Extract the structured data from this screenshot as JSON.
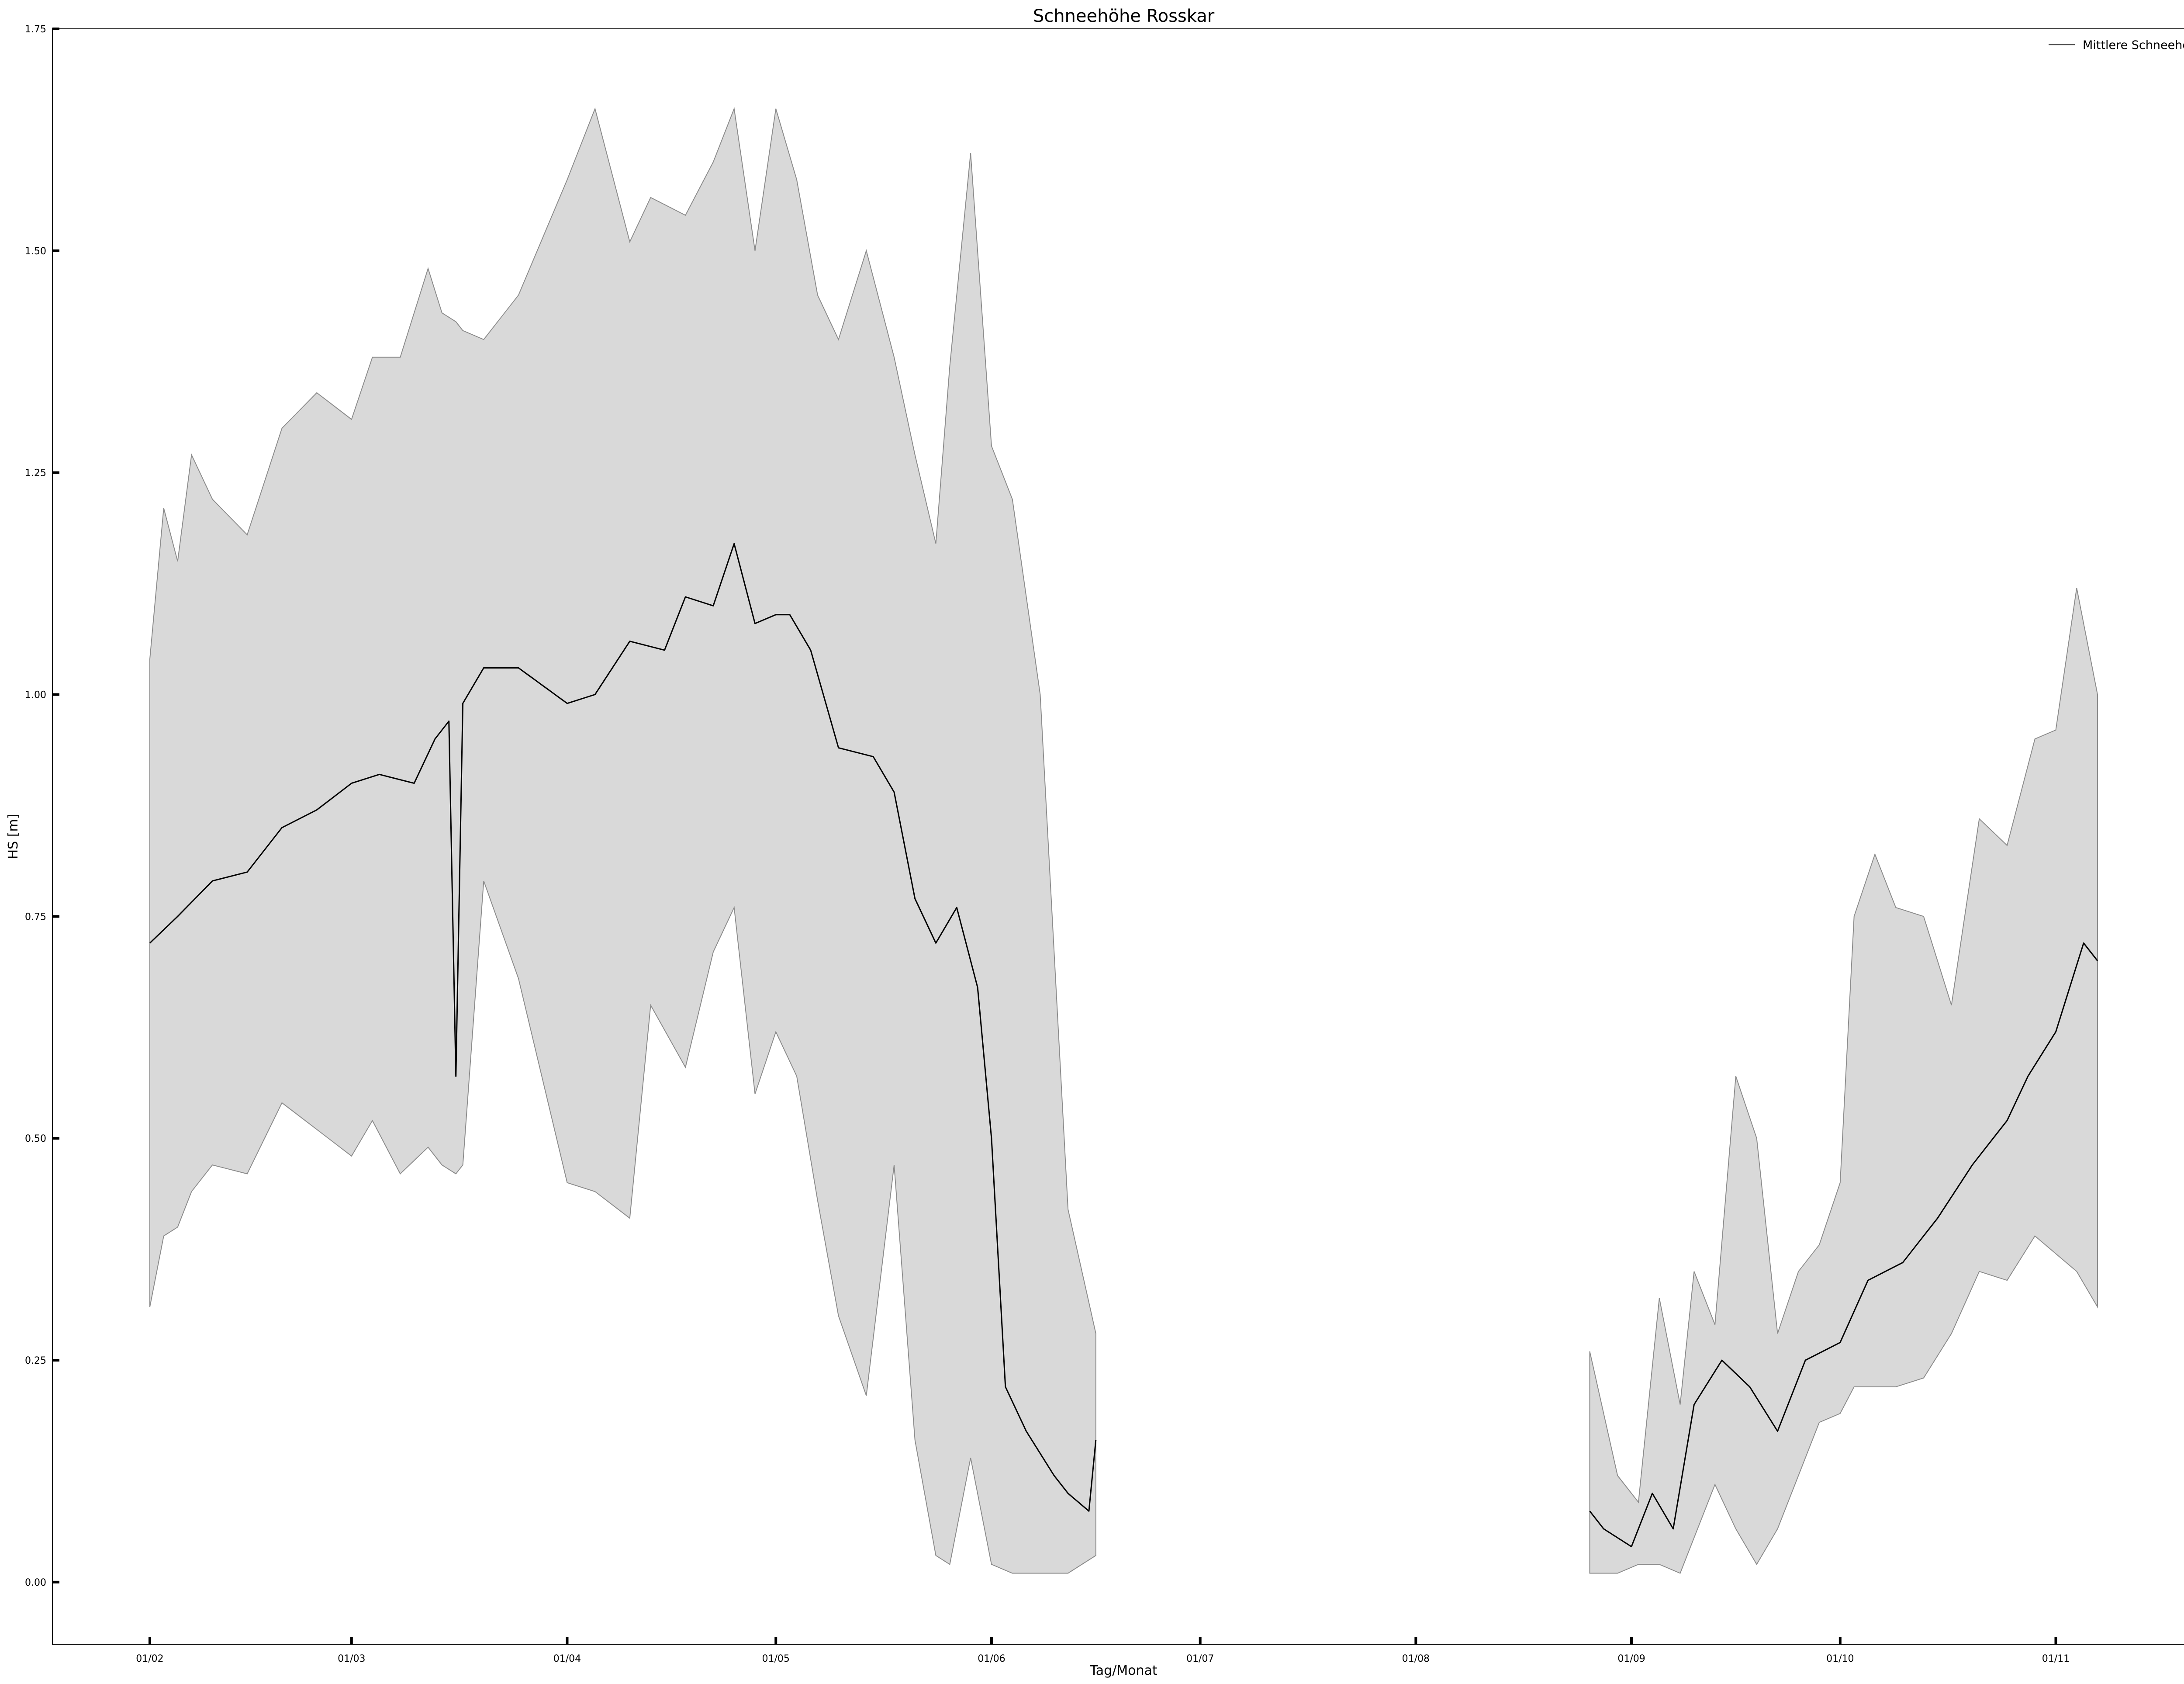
{
  "chart_data": {
    "type": "area",
    "title": "Schneehöhe  Rosskar",
    "xlabel": "Tag/Monat",
    "ylabel": "HS [m]",
    "ylim": [
      -0.07,
      1.75
    ],
    "xlim": [
      "2000-01-18",
      "2000-11-21"
    ],
    "y_ticks": [
      0.0,
      0.25,
      0.5,
      0.75,
      1.0,
      1.25,
      1.5,
      1.75
    ],
    "y_tick_labels": [
      "0.00",
      "0.25",
      "0.50",
      "0.75",
      "1.00",
      "1.25",
      "1.50",
      "1.75"
    ],
    "x_ticks": [
      "2000-02-01",
      "2000-03-01",
      "2000-04-01",
      "2000-05-01",
      "2000-06-01",
      "2000-07-01",
      "2000-08-01",
      "2000-09-01",
      "2000-10-01",
      "2000-11-01"
    ],
    "x_tick_labels": [
      "01/02",
      "01/03",
      "01/04",
      "01/05",
      "01/06",
      "01/07",
      "01/08",
      "01/09",
      "01/10",
      "01/11"
    ],
    "grid": false,
    "legend_position": "top-right",
    "colors": {
      "band_fill": "#d9d9d9",
      "band_edge": "#8c8c8c",
      "mean_line": "#000000"
    },
    "series": [
      {
        "name": "Mittlere Schneehöhe",
        "style": "line",
        "segments": [
          {
            "x": [
              "2000-02-01",
              "2000-02-05",
              "2000-02-10",
              "2000-02-15",
              "2000-02-20",
              "2000-02-25",
              "2000-03-01",
              "2000-03-05",
              "2000-03-10",
              "2000-03-13",
              "2000-03-15",
              "2000-03-16",
              "2000-03-17",
              "2000-03-20",
              "2000-03-25",
              "2000-04-01",
              "2000-04-05",
              "2000-04-10",
              "2000-04-15",
              "2000-04-18",
              "2000-04-22",
              "2000-04-25",
              "2000-04-28",
              "2000-05-01",
              "2000-05-03",
              "2000-05-06",
              "2000-05-10",
              "2000-05-15",
              "2000-05-18",
              "2000-05-21",
              "2000-05-24",
              "2000-05-27",
              "2000-05-30",
              "2000-06-01",
              "2000-06-03",
              "2000-06-06",
              "2000-06-10",
              "2000-06-12",
              "2000-06-15",
              "2000-06-16"
            ],
            "y": [
              0.72,
              0.75,
              0.79,
              0.8,
              0.85,
              0.87,
              0.9,
              0.91,
              0.9,
              0.95,
              0.97,
              0.57,
              0.99,
              1.03,
              1.03,
              0.99,
              1.0,
              1.06,
              1.05,
              1.11,
              1.1,
              1.17,
              1.08,
              1.09,
              1.09,
              1.05,
              0.94,
              0.93,
              0.89,
              0.77,
              0.72,
              0.76,
              0.67,
              0.5,
              0.22,
              0.17,
              0.12,
              0.1,
              0.08,
              0.16
            ]
          },
          {
            "x": [
              "2000-08-26",
              "2000-08-28",
              "2000-09-01",
              "2000-09-04",
              "2000-09-07",
              "2000-09-10",
              "2000-09-14",
              "2000-09-18",
              "2000-09-22",
              "2000-09-26",
              "2000-10-01",
              "2000-10-05",
              "2000-10-10",
              "2000-10-15",
              "2000-10-20",
              "2000-10-25",
              "2000-10-28",
              "2000-11-01",
              "2000-11-05",
              "2000-11-07"
            ],
            "y": [
              0.08,
              0.06,
              0.04,
              0.1,
              0.06,
              0.2,
              0.25,
              0.22,
              0.17,
              0.25,
              0.27,
              0.34,
              0.36,
              0.41,
              0.47,
              0.52,
              0.57,
              0.62,
              0.72,
              0.7
            ]
          }
        ]
      },
      {
        "role": "band",
        "style": "fill",
        "segments": [
          {
            "x": [
              "2000-02-01",
              "2000-02-03",
              "2000-02-05",
              "2000-02-07",
              "2000-02-10",
              "2000-02-15",
              "2000-02-20",
              "2000-02-25",
              "2000-03-01",
              "2000-03-04",
              "2000-03-08",
              "2000-03-12",
              "2000-03-14",
              "2000-03-16",
              "2000-03-17",
              "2000-03-20",
              "2000-03-25",
              "2000-04-01",
              "2000-04-05",
              "2000-04-10",
              "2000-04-13",
              "2000-04-18",
              "2000-04-22",
              "2000-04-25",
              "2000-04-28",
              "2000-05-01",
              "2000-05-04",
              "2000-05-07",
              "2000-05-10",
              "2000-05-14",
              "2000-05-18",
              "2000-05-21",
              "2000-05-24",
              "2000-05-26",
              "2000-05-29",
              "2000-06-01",
              "2000-06-04",
              "2000-06-08",
              "2000-06-12",
              "2000-06-16"
            ],
            "low": [
              0.31,
              0.39,
              0.4,
              0.44,
              0.47,
              0.46,
              0.54,
              0.51,
              0.48,
              0.52,
              0.46,
              0.49,
              0.47,
              0.46,
              0.47,
              0.79,
              0.68,
              0.45,
              0.44,
              0.41,
              0.65,
              0.58,
              0.71,
              0.76,
              0.55,
              0.62,
              0.57,
              0.43,
              0.3,
              0.21,
              0.47,
              0.16,
              0.03,
              0.02,
              0.14,
              0.02,
              0.01,
              0.01,
              0.01,
              0.03
            ],
            "high": [
              1.04,
              1.21,
              1.15,
              1.27,
              1.22,
              1.18,
              1.3,
              1.34,
              1.31,
              1.38,
              1.38,
              1.48,
              1.43,
              1.42,
              1.41,
              1.4,
              1.45,
              1.58,
              1.66,
              1.51,
              1.56,
              1.54,
              1.6,
              1.66,
              1.5,
              1.66,
              1.58,
              1.45,
              1.4,
              1.5,
              1.38,
              1.27,
              1.17,
              1.37,
              1.61,
              1.28,
              1.22,
              1.0,
              0.42,
              0.28
            ]
          },
          {
            "x": [
              "2000-08-26",
              "2000-08-30",
              "2000-09-02",
              "2000-09-05",
              "2000-09-08",
              "2000-09-10",
              "2000-09-13",
              "2000-09-16",
              "2000-09-19",
              "2000-09-22",
              "2000-09-25",
              "2000-09-28",
              "2000-10-01",
              "2000-10-03",
              "2000-10-06",
              "2000-10-09",
              "2000-10-13",
              "2000-10-17",
              "2000-10-21",
              "2000-10-25",
              "2000-10-29",
              "2000-11-01",
              "2000-11-04",
              "2000-11-07"
            ],
            "low": [
              0.01,
              0.01,
              0.02,
              0.02,
              0.01,
              0.05,
              0.11,
              0.06,
              0.02,
              0.06,
              0.12,
              0.18,
              0.19,
              0.22,
              0.22,
              0.22,
              0.23,
              0.28,
              0.35,
              0.34,
              0.39,
              0.37,
              0.35,
              0.31
            ],
            "high": [
              0.26,
              0.12,
              0.09,
              0.32,
              0.2,
              0.35,
              0.29,
              0.57,
              0.5,
              0.28,
              0.35,
              0.38,
              0.45,
              0.75,
              0.82,
              0.76,
              0.75,
              0.65,
              0.86,
              0.83,
              0.95,
              0.96,
              1.12,
              1.0
            ]
          }
        ]
      }
    ]
  }
}
